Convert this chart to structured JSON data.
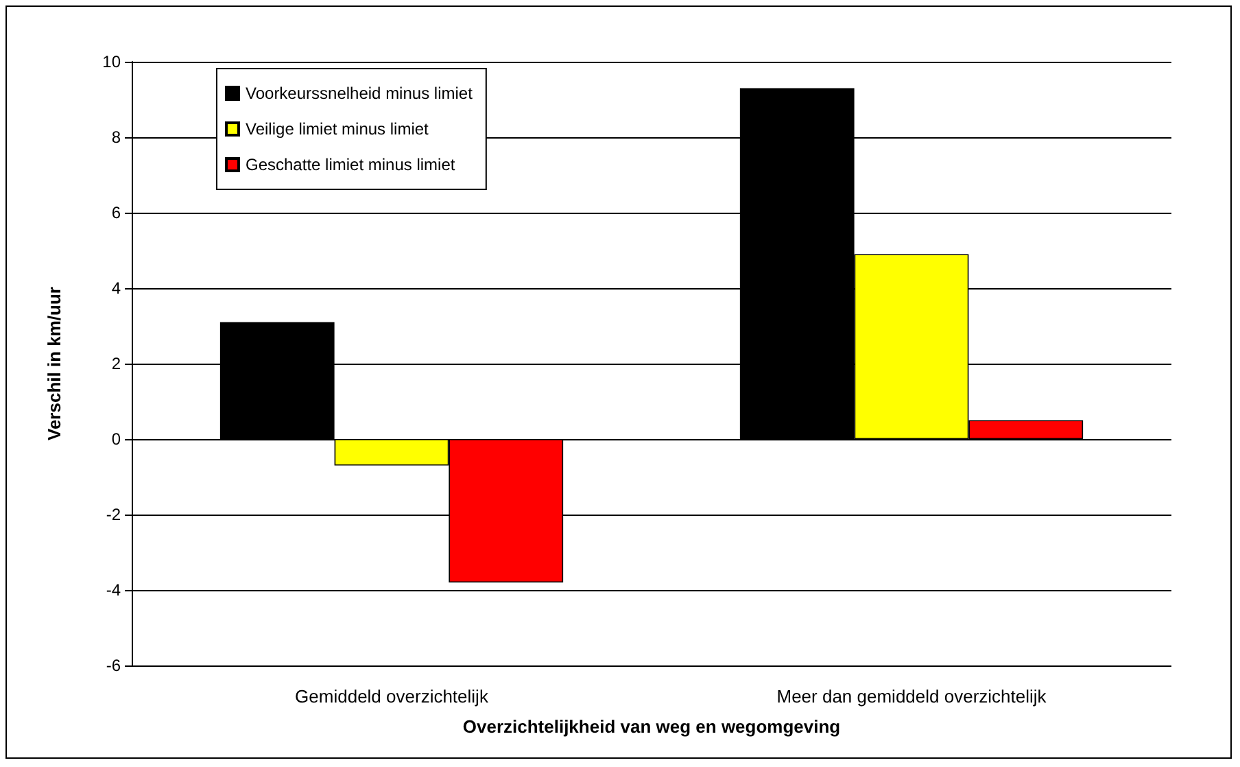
{
  "chart_data": {
    "type": "bar",
    "xlabel": "Overzichtelijkheid van weg en wegomgeving",
    "ylabel": "Verschil in km/uur",
    "categories": [
      "Gemiddeld overzichtelijk",
      "Meer dan gemiddeld overzichtelijk"
    ],
    "series": [
      {
        "name": "Voorkeurssnelheid minus limiet",
        "color": "#000000",
        "values": [
          3.1,
          9.3
        ]
      },
      {
        "name": "Veilige limiet minus limiet",
        "color": "#ffff00",
        "values": [
          -0.7,
          4.9
        ]
      },
      {
        "name": "Geschatte limiet minus limiet",
        "color": "#ff0000",
        "values": [
          -3.8,
          0.5
        ]
      }
    ],
    "ylim": [
      -6,
      10
    ],
    "yticks": [
      -6,
      -4,
      -2,
      0,
      2,
      4,
      6,
      8,
      10
    ],
    "grid": "y",
    "legend": "top left"
  }
}
